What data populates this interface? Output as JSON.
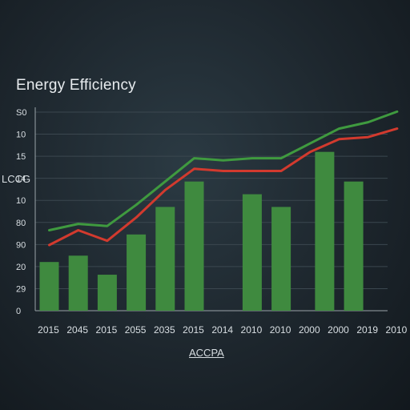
{
  "chart_data": {
    "type": "bar",
    "title": "Energy Efficiency",
    "ylabel": "LCCG",
    "xlabel": "ACCPA",
    "y_tick_labels": [
      "0",
      "29",
      "20",
      "90",
      "80",
      "10",
      "14",
      "15",
      "10",
      "S0"
    ],
    "categories": [
      "2015",
      "2045",
      "2015",
      "2055",
      "2035",
      "2015",
      "2014",
      "2010",
      "2010",
      "2000",
      "2000",
      "2019",
      "2010"
    ],
    "ylim": [
      0,
      9
    ],
    "grid": true,
    "bars": [
      {
        "x": 0,
        "value": 2.3
      },
      {
        "x": 1,
        "value": 2.6
      },
      {
        "x": 2,
        "value": 1.7
      },
      {
        "x": 3,
        "value": 3.6
      },
      {
        "x": 4,
        "value": 4.9
      },
      {
        "x": 5,
        "value": 6.1
      },
      {
        "x": 7,
        "value": 5.5
      },
      {
        "x": 8,
        "value": 4.9
      },
      {
        "x": 9.5,
        "value": 7.5
      },
      {
        "x": 10.5,
        "value": 6.1
      }
    ],
    "series": [
      {
        "color": "#3f9a3f",
        "points": [
          [
            0,
            3.8
          ],
          [
            1,
            4.1
          ],
          [
            2,
            4.0
          ],
          [
            3,
            5.0
          ],
          [
            4,
            6.1
          ],
          [
            5,
            7.2
          ],
          [
            6,
            7.1
          ],
          [
            7,
            7.2
          ],
          [
            8,
            7.2
          ],
          [
            9,
            7.9
          ],
          [
            10,
            8.6
          ],
          [
            11,
            8.9
          ],
          [
            12,
            9.4
          ]
        ]
      },
      {
        "color": "#d23a2e",
        "points": [
          [
            0,
            3.1
          ],
          [
            1,
            3.8
          ],
          [
            2,
            3.3
          ],
          [
            3,
            4.4
          ],
          [
            4,
            5.7
          ],
          [
            5,
            6.7
          ],
          [
            6,
            6.6
          ],
          [
            7,
            6.6
          ],
          [
            8,
            6.6
          ],
          [
            9,
            7.5
          ],
          [
            10,
            8.1
          ],
          [
            11,
            8.2
          ],
          [
            12,
            8.6
          ]
        ]
      }
    ],
    "colors": {
      "bar": "#3f8a3f",
      "bar_highlight": "#4c9c4a",
      "axis": "#9aa3a8",
      "grid": "#3b474f"
    }
  }
}
